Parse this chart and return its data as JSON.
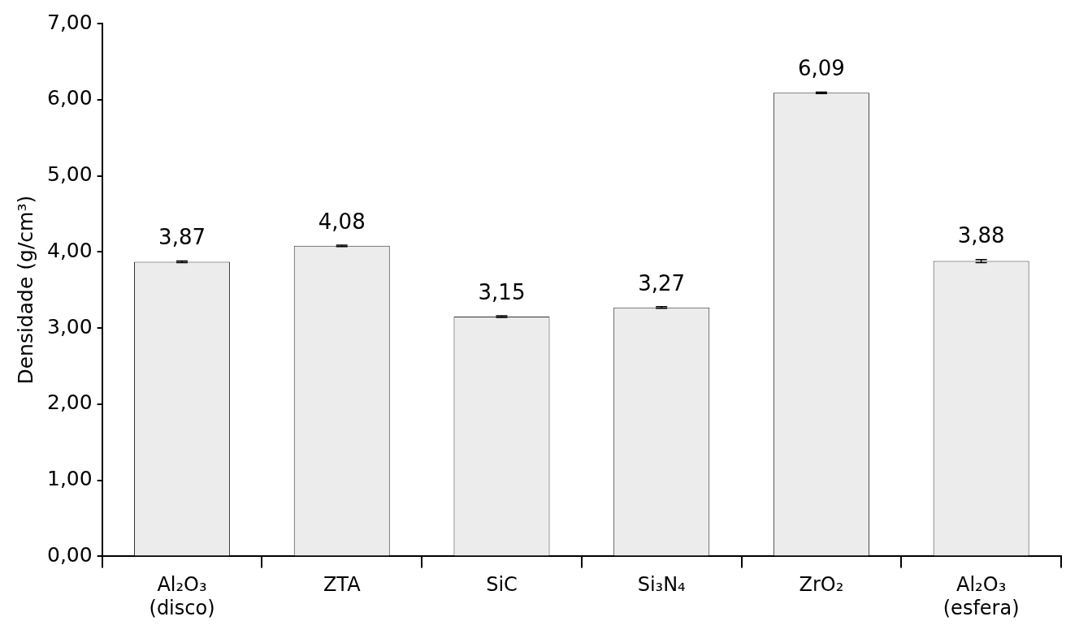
{
  "chart_data": {
    "type": "bar",
    "ylabel": "Densidade (g/cm³)",
    "categories": [
      "Al₂O₃\n(disco)",
      "ZTA",
      "SiC",
      "Si₃N₄",
      "ZrO₂",
      "Al₂O₃\n(esfera)"
    ],
    "values": [
      3.87,
      4.08,
      3.15,
      3.27,
      6.09,
      3.88
    ],
    "errors": [
      0.01,
      0.01,
      0.01,
      0.01,
      0.01,
      0.02
    ],
    "value_labels": [
      "3,87",
      "4,08",
      "3,15",
      "3,27",
      "6,09",
      "3,88"
    ],
    "color": "#ececec",
    "ylim": [
      0,
      7
    ],
    "yticks": [
      {
        "value": 0,
        "label": "0,00"
      },
      {
        "value": 1,
        "label": "1,00"
      },
      {
        "value": 2,
        "label": "2,00"
      },
      {
        "value": 3,
        "label": "3,00"
      },
      {
        "value": 4,
        "label": "4,00"
      },
      {
        "value": 5,
        "label": "5,00"
      },
      {
        "value": 6,
        "label": "6,00"
      },
      {
        "value": 7,
        "label": "7,00"
      }
    ],
    "grid": false
  }
}
